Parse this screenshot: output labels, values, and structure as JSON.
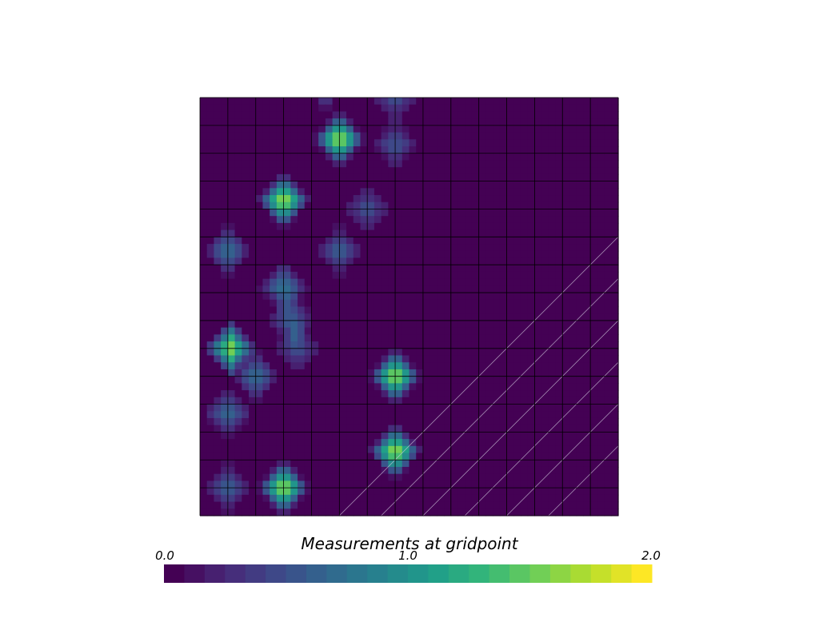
{
  "chart_data": {
    "type": "heatmap",
    "grid": {
      "x": [
        0,
        1,
        2,
        3,
        4,
        5,
        6,
        7,
        8,
        9,
        10,
        11,
        12,
        13,
        14,
        15
      ],
      "y": [
        0,
        1,
        2,
        3,
        4,
        5,
        6,
        7,
        8,
        9,
        10,
        11,
        12,
        13,
        14,
        15
      ]
    },
    "peaks": [
      {
        "x": 4.5,
        "y": 15.5,
        "value": 0.8
      },
      {
        "x": 7.0,
        "y": 15.0,
        "value": 0.6
      },
      {
        "x": 5.0,
        "y": 13.5,
        "value": 1.9
      },
      {
        "x": 7.0,
        "y": 13.3,
        "value": 0.6
      },
      {
        "x": 3.0,
        "y": 11.3,
        "value": 1.9
      },
      {
        "x": 6.0,
        "y": 11.0,
        "value": 0.6
      },
      {
        "x": 1.0,
        "y": 9.5,
        "value": 0.8
      },
      {
        "x": 5.0,
        "y": 9.5,
        "value": 0.7
      },
      {
        "x": 3.0,
        "y": 8.2,
        "value": 0.9
      },
      {
        "x": 3.3,
        "y": 7.0,
        "value": 0.7
      },
      {
        "x": 1.1,
        "y": 6.0,
        "value": 1.8
      },
      {
        "x": 3.5,
        "y": 6.0,
        "value": 0.6
      },
      {
        "x": 2.0,
        "y": 5.0,
        "value": 0.8
      },
      {
        "x": 7.0,
        "y": 5.0,
        "value": 1.9
      },
      {
        "x": 1.0,
        "y": 3.7,
        "value": 0.8
      },
      {
        "x": 7.0,
        "y": 2.3,
        "value": 1.9
      },
      {
        "x": 1.0,
        "y": 1.0,
        "value": 0.7
      },
      {
        "x": 3.0,
        "y": 1.0,
        "value": 1.9
      }
    ],
    "colorbar": {
      "title": "Measurements at gridpoint",
      "range": [
        0.0,
        2.0
      ],
      "tick_labels": [
        "0.0",
        "1.0",
        "2.0"
      ],
      "steps": 24,
      "colormap": [
        "#440154",
        "#482878",
        "#3e4989",
        "#31688e",
        "#26828e",
        "#1f9e89",
        "#35b779",
        "#6ece58",
        "#b5de2b",
        "#fde725"
      ]
    },
    "grid_lines": true,
    "background_value": 0.0
  }
}
